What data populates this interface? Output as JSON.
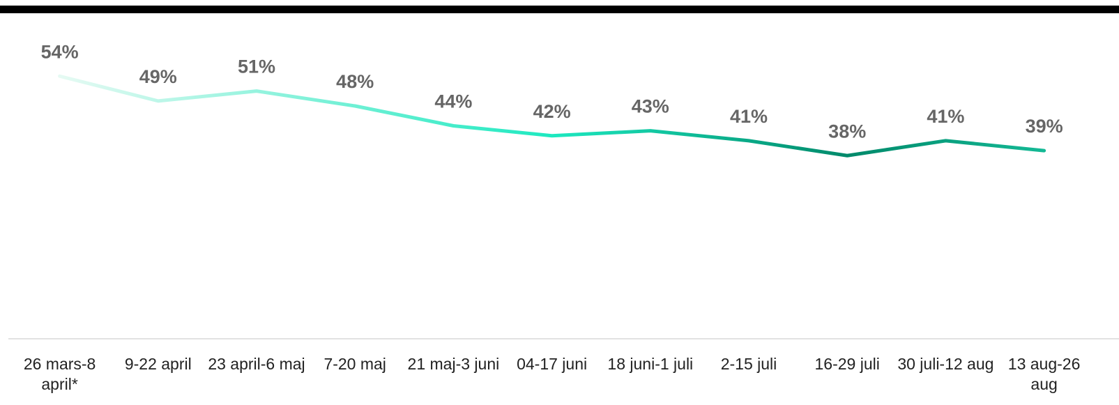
{
  "chart_data": {
    "type": "line",
    "categories": [
      "26 mars-8 april*",
      "9-22 april",
      "23 april-6 maj",
      "7-20 maj",
      "21 maj-3 juni",
      "04-17 juni",
      "18 juni-1 juli",
      "2-15 juli",
      "16-29 juli",
      "30 juli-12 aug",
      "13 aug-26 aug"
    ],
    "series": [
      {
        "values": [
          54,
          49,
          51,
          48,
          44,
          42,
          43,
          41,
          38,
          41,
          39
        ],
        "value_labels": [
          "54%",
          "49%",
          "51%",
          "48%",
          "44%",
          "42%",
          "43%",
          "41%",
          "38%",
          "41%",
          "39%"
        ],
        "colors": [
          "#e6faf3",
          "#1de9c0",
          "#00896a",
          "#14b995"
        ]
      }
    ],
    "ylim": [
      0,
      60
    ]
  }
}
